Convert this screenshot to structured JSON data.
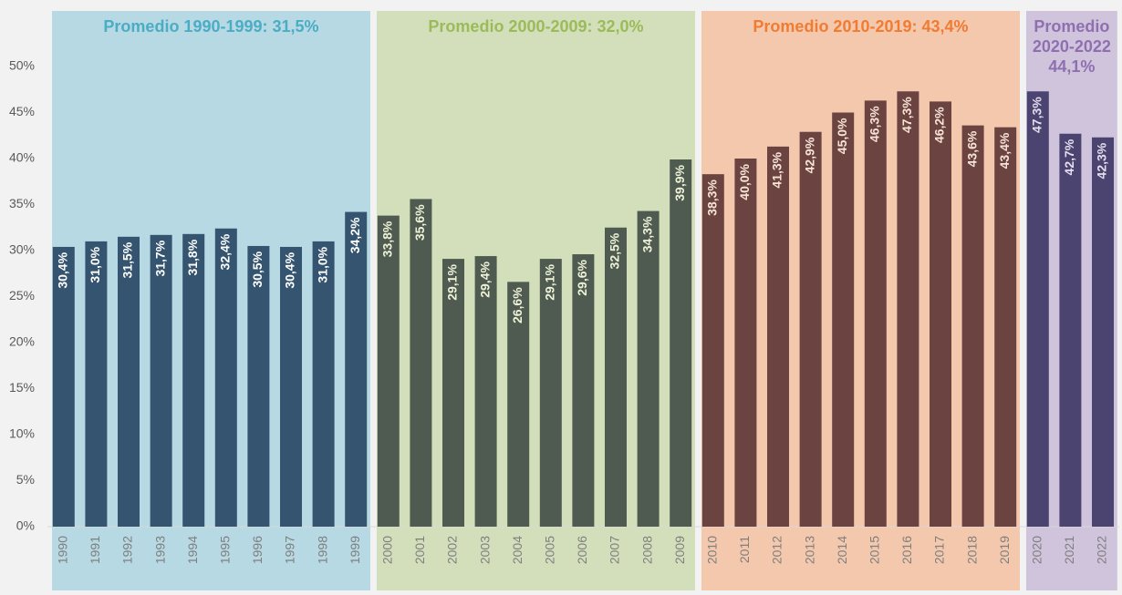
{
  "chart_data": {
    "type": "bar",
    "ylim": [
      0,
      55
    ],
    "yticks": [
      {
        "value": 0,
        "label": "0%"
      },
      {
        "value": 5,
        "label": "5%"
      },
      {
        "value": 10,
        "label": "10%"
      },
      {
        "value": 15,
        "label": "15%"
      },
      {
        "value": 20,
        "label": "20%"
      },
      {
        "value": 25,
        "label": "25%"
      },
      {
        "value": 30,
        "label": "30%"
      },
      {
        "value": 35,
        "label": "35%"
      },
      {
        "value": 40,
        "label": "40%"
      },
      {
        "value": 45,
        "label": "45%"
      },
      {
        "value": 50,
        "label": "50%"
      }
    ],
    "grid": false,
    "groups": [
      {
        "title": [
          "Promedio 1990-1999: 31,5%"
        ],
        "color": "#34546f",
        "panel_color": "#b7d9e3",
        "title_color": "#4bacc6",
        "label_color": "#ffffff",
        "categories": [
          "1990",
          "1991",
          "1992",
          "1993",
          "1994",
          "1995",
          "1996",
          "1997",
          "1998",
          "1999"
        ],
        "values": [
          30.4,
          31.0,
          31.5,
          31.7,
          31.8,
          32.4,
          30.5,
          30.4,
          31.0,
          34.2
        ],
        "value_labels": [
          "30,4%",
          "31,0%",
          "31,5%",
          "31,7%",
          "31,8%",
          "32,4%",
          "30,5%",
          "30,4%",
          "31,0%",
          "34,2%"
        ]
      },
      {
        "title": [
          "Promedio 2000-2009: 32,0%"
        ],
        "color": "#4f5b50",
        "panel_color": "#d3dfbb",
        "title_color": "#9bbb59",
        "label_color": "#eef3d8",
        "categories": [
          "2000",
          "2001",
          "2002",
          "2003",
          "2004",
          "2005",
          "2006",
          "2007",
          "2008",
          "2009"
        ],
        "values": [
          33.8,
          35.6,
          29.1,
          29.4,
          26.6,
          29.1,
          29.6,
          32.5,
          34.3,
          39.9
        ],
        "value_labels": [
          "33,8%",
          "35,6%",
          "29,1%",
          "29,4%",
          "26,6%",
          "29,1%",
          "29,6%",
          "32,5%",
          "34,3%",
          "39,9%"
        ]
      },
      {
        "title": [
          "Promedio 2010-2019: 43,4%"
        ],
        "color": "#6b4441",
        "panel_color": "#f3c8ad",
        "title_color": "#f07c33",
        "label_color": "#f8e4d6",
        "categories": [
          "2010",
          "2011",
          "2012",
          "2013",
          "2014",
          "2015",
          "2016",
          "2017",
          "2018",
          "2019"
        ],
        "values": [
          38.3,
          40.0,
          41.3,
          42.9,
          45.0,
          46.3,
          47.3,
          46.2,
          43.6,
          43.4
        ],
        "value_labels": [
          "38,3%",
          "40,0%",
          "41,3%",
          "42,9%",
          "45,0%",
          "46,3%",
          "47,3%",
          "46,2%",
          "43,6%",
          "43,4%"
        ]
      },
      {
        "title": [
          "Promedio",
          "2020-2022",
          "44,1%"
        ],
        "color": "#4c4470",
        "panel_color": "#cfc4dc",
        "title_color": "#8f6fb0",
        "label_color": "#e4deee",
        "categories": [
          "2020",
          "2021",
          "2022"
        ],
        "values": [
          47.3,
          42.7,
          42.3
        ],
        "value_labels": [
          "47,3%",
          "42,7%",
          "42,3%"
        ]
      }
    ]
  }
}
